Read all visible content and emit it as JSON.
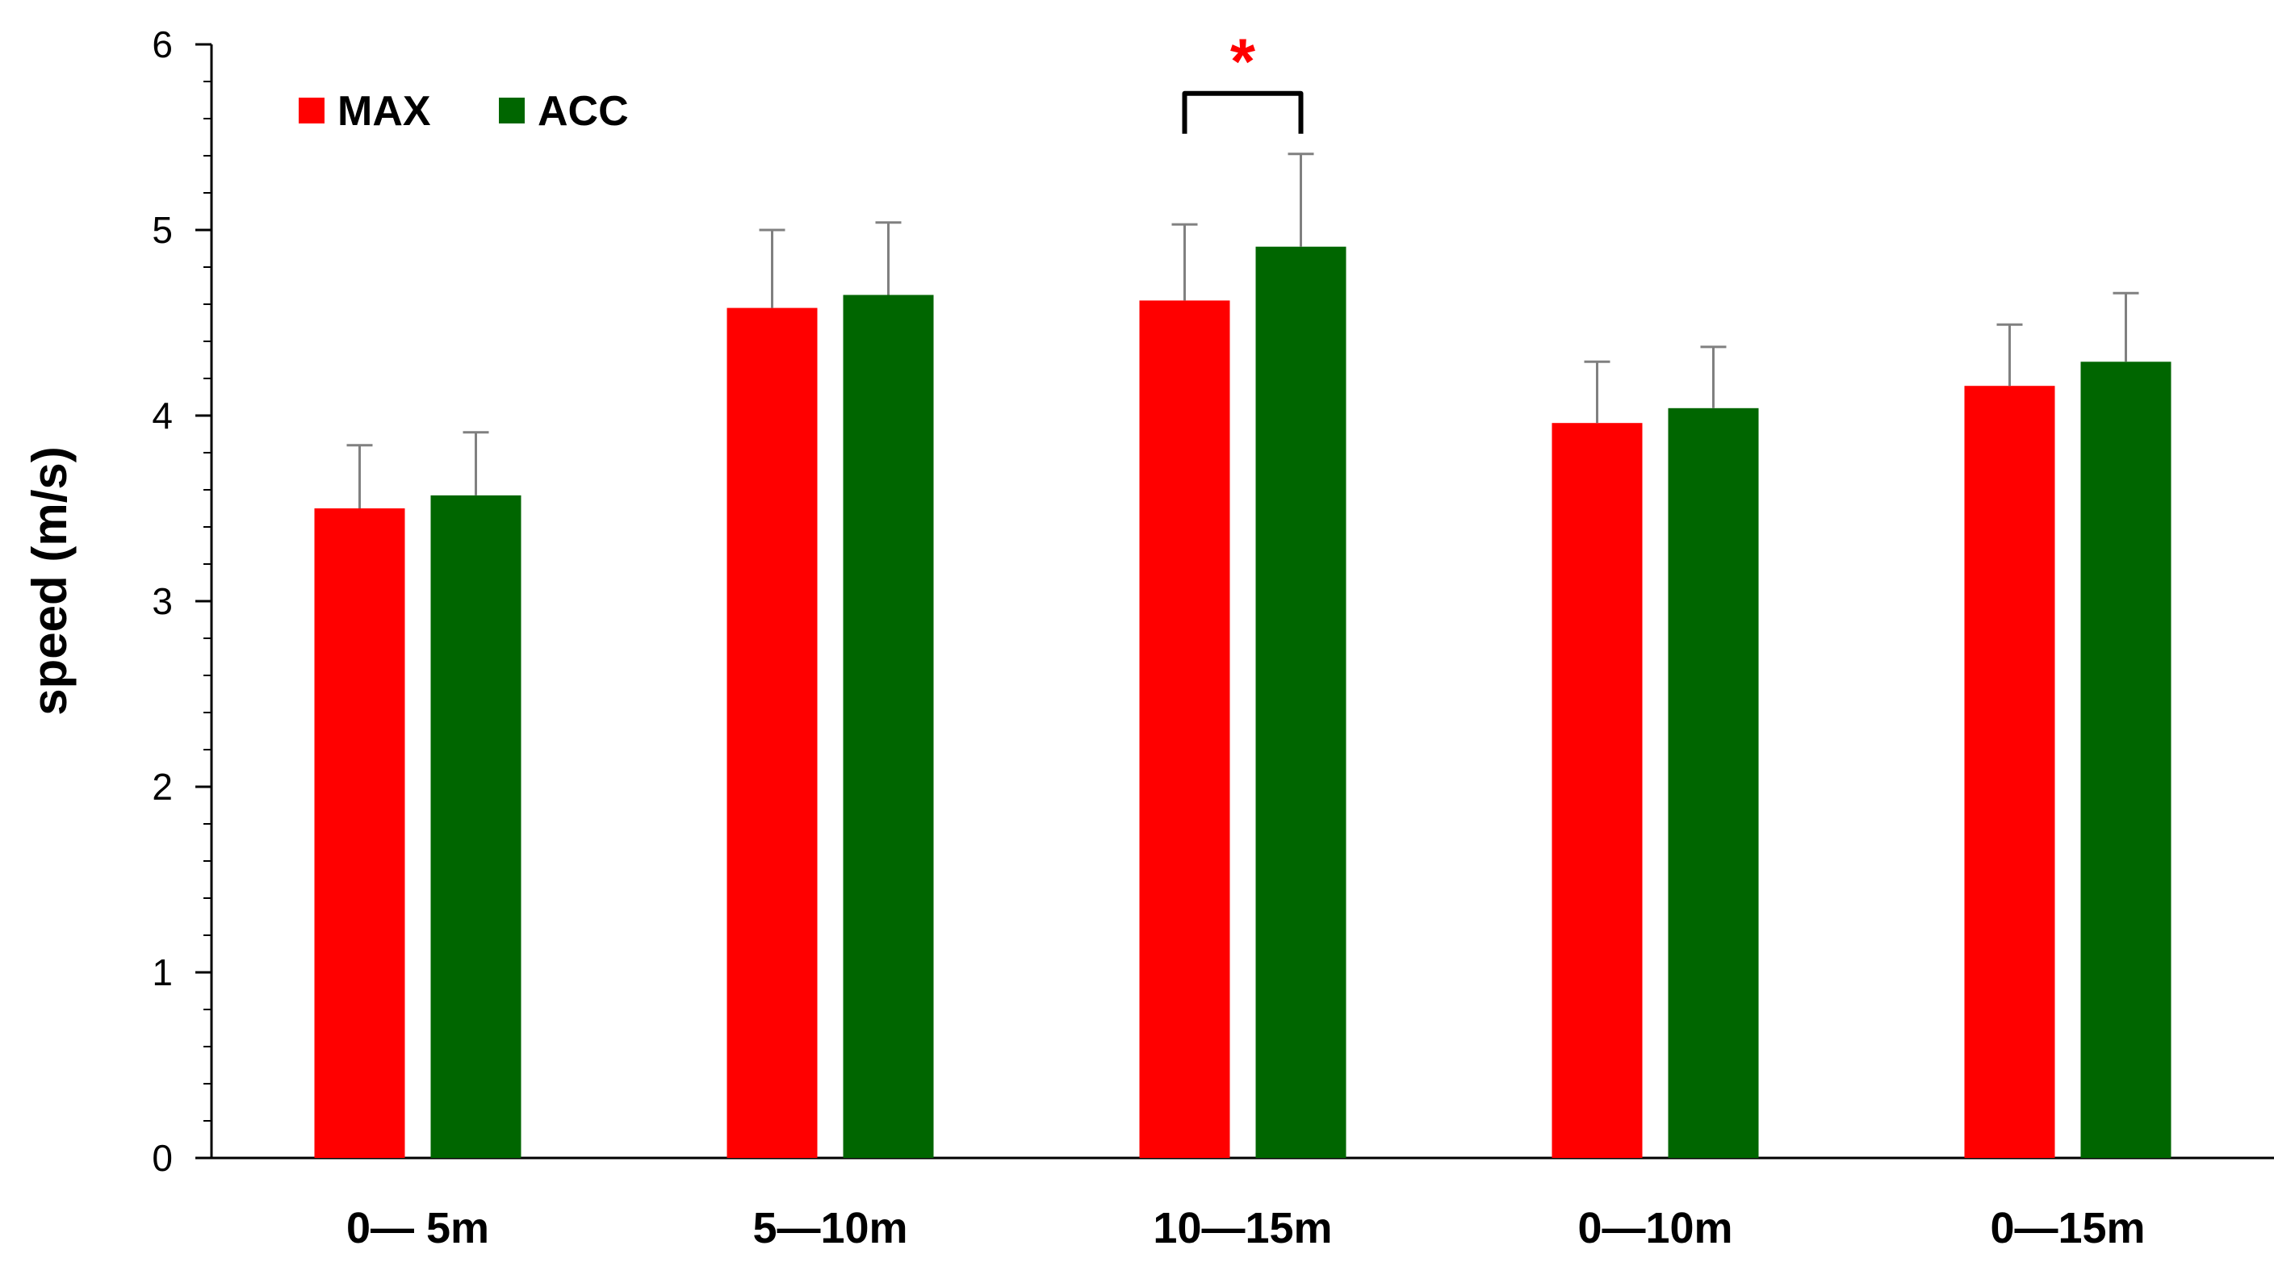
{
  "chart_data": {
    "type": "bar",
    "title": "",
    "xlabel": "",
    "ylabel": "speed (m/s)",
    "ylim": [
      0,
      6
    ],
    "yticks": [
      0,
      1,
      2,
      3,
      4,
      5,
      6
    ],
    "ytick_labels": [
      "0",
      "1",
      "2",
      "3",
      "4",
      "5",
      "6"
    ],
    "minor_ticks_per_major": 5,
    "grid": false,
    "legend_position": "top-left",
    "error_bars": true,
    "categories": [
      "0— 5m",
      "5—10m",
      "10—15m",
      "0—10m",
      "0—15m"
    ],
    "series": [
      {
        "name": "MAX",
        "color": "#ff0000",
        "values": [
          3.5,
          4.58,
          4.62,
          3.96,
          4.16
        ],
        "errors": [
          0.34,
          0.42,
          0.41,
          0.33,
          0.33
        ]
      },
      {
        "name": "ACC",
        "color": "#006600",
        "values": [
          3.57,
          4.65,
          4.91,
          4.04,
          4.29
        ],
        "errors": [
          0.34,
          0.39,
          0.5,
          0.33,
          0.37
        ]
      }
    ],
    "annotations": [
      {
        "type": "significance",
        "text": "*",
        "category_index": 2,
        "color": "#ff0000"
      }
    ]
  }
}
